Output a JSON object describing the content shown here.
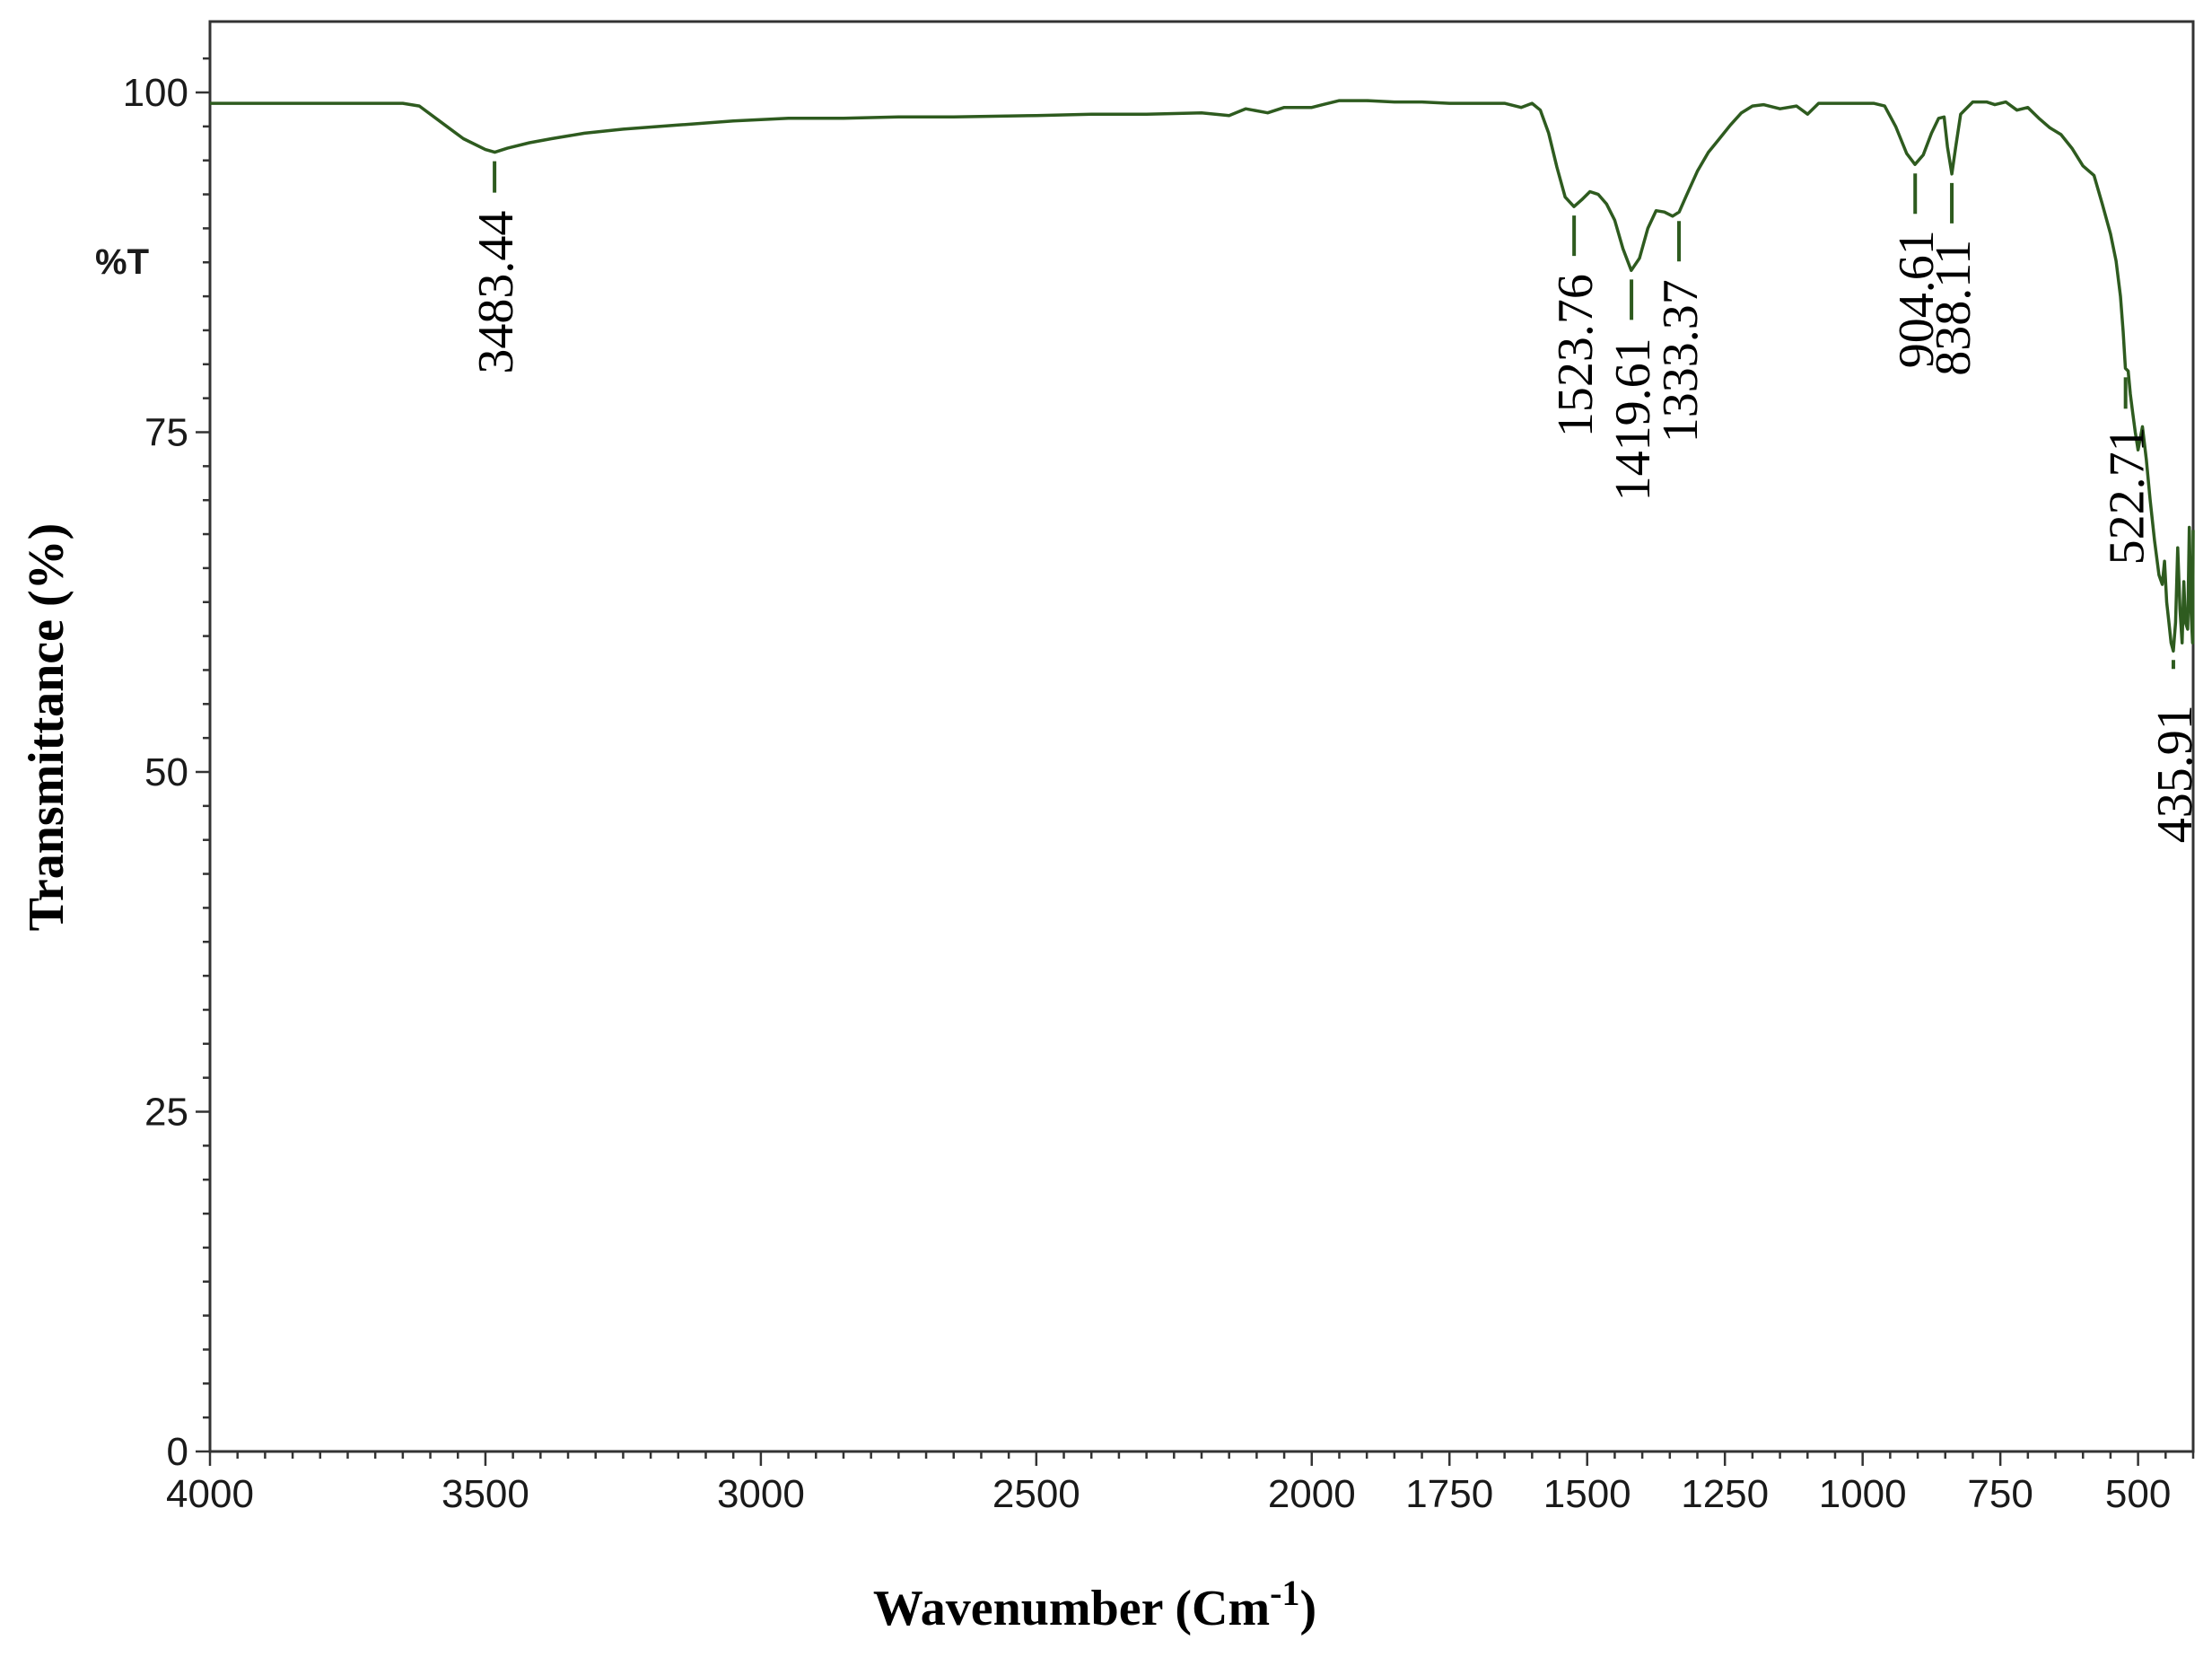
{
  "chart_data": {
    "type": "line",
    "xlabel": "Wavenumber (Cm",
    "xlabel_superscript": "-1",
    "xlabel_close": ")",
    "ylabel": "Transmittance (%)",
    "y_unit_label": "%T",
    "xlim": [
      4000,
      400
    ],
    "ylim": [
      0,
      100
    ],
    "x_reversed": true,
    "xticks": [
      4000,
      3500,
      3000,
      2500,
      2000,
      1750,
      1500,
      1250,
      1000,
      750,
      500
    ],
    "xtick_labels": [
      "4000",
      "3500",
      "3000",
      "2500",
      "2000",
      "1750",
      "1500",
      "1250",
      "1000",
      "750",
      "500"
    ],
    "yticks": [
      0,
      25,
      50,
      75,
      100
    ],
    "ytick_labels": [
      "0",
      "25",
      "50",
      "75",
      "100"
    ],
    "grid": false,
    "line_color": "#2e5b1f",
    "series": [
      {
        "points": [
          [
            4000,
            99.2
          ],
          [
            3900,
            99.2
          ],
          [
            3800,
            99.2
          ],
          [
            3650,
            99.2
          ],
          [
            3620,
            99.0
          ],
          [
            3580,
            97.8
          ],
          [
            3540,
            96.6
          ],
          [
            3500,
            95.8
          ],
          [
            3483,
            95.6
          ],
          [
            3460,
            95.9
          ],
          [
            3420,
            96.3
          ],
          [
            3380,
            96.6
          ],
          [
            3320,
            97.0
          ],
          [
            3250,
            97.3
          ],
          [
            3150,
            97.6
          ],
          [
            3050,
            97.9
          ],
          [
            2950,
            98.1
          ],
          [
            2850,
            98.1
          ],
          [
            2750,
            98.2
          ],
          [
            2650,
            98.2
          ],
          [
            2500,
            98.3
          ],
          [
            2400,
            98.4
          ],
          [
            2300,
            98.4
          ],
          [
            2200,
            98.5
          ],
          [
            2150,
            98.3
          ],
          [
            2120,
            98.8
          ],
          [
            2080,
            98.5
          ],
          [
            2050,
            98.9
          ],
          [
            2000,
            98.9
          ],
          [
            1980,
            99.1
          ],
          [
            1950,
            99.4
          ],
          [
            1900,
            99.4
          ],
          [
            1850,
            99.3
          ],
          [
            1800,
            99.3
          ],
          [
            1750,
            99.2
          ],
          [
            1700,
            99.2
          ],
          [
            1650,
            99.2
          ],
          [
            1620,
            98.9
          ],
          [
            1600,
            99.2
          ],
          [
            1585,
            98.7
          ],
          [
            1570,
            97.0
          ],
          [
            1555,
            94.5
          ],
          [
            1540,
            92.3
          ],
          [
            1524,
            91.6
          ],
          [
            1510,
            92.1
          ],
          [
            1495,
            92.7
          ],
          [
            1480,
            92.5
          ],
          [
            1465,
            91.8
          ],
          [
            1450,
            90.6
          ],
          [
            1435,
            88.5
          ],
          [
            1420,
            86.9
          ],
          [
            1405,
            87.8
          ],
          [
            1390,
            90.0
          ],
          [
            1375,
            91.3
          ],
          [
            1360,
            91.2
          ],
          [
            1345,
            90.9
          ],
          [
            1333,
            91.2
          ],
          [
            1320,
            92.4
          ],
          [
            1300,
            94.2
          ],
          [
            1280,
            95.6
          ],
          [
            1260,
            96.6
          ],
          [
            1240,
            97.6
          ],
          [
            1220,
            98.5
          ],
          [
            1200,
            99.0
          ],
          [
            1180,
            99.1
          ],
          [
            1150,
            98.8
          ],
          [
            1120,
            99.0
          ],
          [
            1100,
            98.4
          ],
          [
            1080,
            99.2
          ],
          [
            1050,
            99.2
          ],
          [
            1000,
            99.2
          ],
          [
            980,
            99.2
          ],
          [
            960,
            99.0
          ],
          [
            940,
            97.5
          ],
          [
            920,
            95.5
          ],
          [
            905,
            94.7
          ],
          [
            890,
            95.4
          ],
          [
            875,
            97.0
          ],
          [
            862,
            98.1
          ],
          [
            852,
            98.2
          ],
          [
            846,
            96.0
          ],
          [
            838,
            94.0
          ],
          [
            831,
            96.0
          ],
          [
            822,
            98.4
          ],
          [
            800,
            99.3
          ],
          [
            775,
            99.3
          ],
          [
            760,
            99.1
          ],
          [
            740,
            99.3
          ],
          [
            720,
            98.7
          ],
          [
            700,
            98.9
          ],
          [
            680,
            98.1
          ],
          [
            660,
            97.4
          ],
          [
            640,
            96.9
          ],
          [
            620,
            95.9
          ],
          [
            600,
            94.6
          ],
          [
            580,
            93.9
          ],
          [
            565,
            91.8
          ],
          [
            550,
            89.6
          ],
          [
            540,
            87.6
          ],
          [
            532,
            85.0
          ],
          [
            527,
            82.4
          ],
          [
            523,
            79.7
          ],
          [
            518,
            79.5
          ],
          [
            514,
            77.8
          ],
          [
            510,
            76.5
          ],
          [
            505,
            75.0
          ],
          [
            500,
            73.7
          ],
          [
            492,
            75.4
          ],
          [
            485,
            73.0
          ],
          [
            478,
            70.0
          ],
          [
            470,
            67.0
          ],
          [
            462,
            64.5
          ],
          [
            456,
            63.8
          ],
          [
            452,
            65.5
          ],
          [
            448,
            62.5
          ],
          [
            444,
            61.0
          ],
          [
            440,
            59.5
          ],
          [
            436,
            58.9
          ],
          [
            432,
            61.0
          ],
          [
            428,
            66.5
          ],
          [
            424,
            62.0
          ],
          [
            420,
            59.5
          ],
          [
            417,
            64.0
          ],
          [
            414,
            61.0
          ],
          [
            410,
            60.5
          ],
          [
            407,
            68.0
          ],
          [
            404,
            62.0
          ],
          [
            401,
            59.5
          ],
          [
            400,
            67.8
          ]
        ]
      }
    ],
    "peaks": [
      {
        "label": "3483.44",
        "x": 3483.44,
        "y": 95.6
      },
      {
        "label": "1523.76",
        "x": 1523.76,
        "y": 91.6
      },
      {
        "label": "1419.61",
        "x": 1419.61,
        "y": 86.9
      },
      {
        "label": "1333.37",
        "x": 1333.37,
        "y": 91.2
      },
      {
        "label": "904.61",
        "x": 904.61,
        "y": 94.7
      },
      {
        "label": "838.11",
        "x": 838.11,
        "y": 94.0
      },
      {
        "label": "522.71",
        "x": 522.71,
        "y": 79.7
      },
      {
        "label": "435.91",
        "x": 435.91,
        "y": 58.9
      }
    ]
  }
}
